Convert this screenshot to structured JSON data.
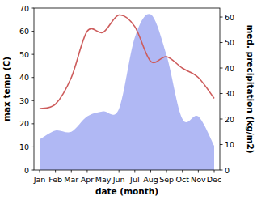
{
  "chart_data": {
    "type": "line",
    "categories": [
      "Jan",
      "Feb",
      "Mar",
      "Apr",
      "May",
      "Jun",
      "Jul",
      "Aug",
      "Sep",
      "Oct",
      "Nov",
      "Dec"
    ],
    "xlabel": "date (month)",
    "ylabel": "max temp (C)",
    "y2label": "med. precipitation (kg/m2)",
    "ylim": [
      0,
      70
    ],
    "yticks": [
      0,
      10,
      20,
      30,
      40,
      50,
      60,
      70
    ],
    "y2lim": [
      0,
      63.5
    ],
    "y2ticks": [
      0,
      10,
      20,
      30,
      40,
      50,
      60
    ],
    "series": [
      {
        "type": "area",
        "axis": "y2",
        "color": "#b0b8f4",
        "values": [
          12,
          15.5,
          15,
          21,
          23,
          24,
          52,
          61,
          45,
          20,
          21,
          9.5
        ]
      },
      {
        "type": "line",
        "color": "#cd5c5c",
        "values": [
          26.5,
          28.5,
          40,
          60,
          59.5,
          67,
          62,
          47,
          49,
          44,
          40,
          31
        ]
      }
    ]
  }
}
